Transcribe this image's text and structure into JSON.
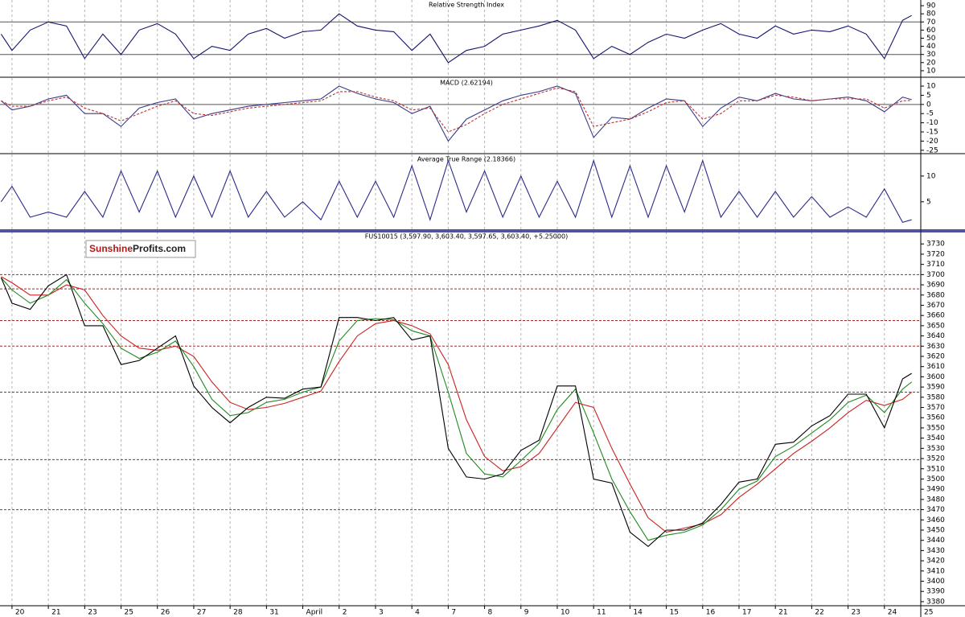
{
  "chart_data": [
    {
      "type": "line",
      "title": "Relative Strength Index",
      "ylim": [
        3,
        97
      ],
      "yticks": [
        90,
        80,
        70,
        60,
        50,
        40,
        30,
        20,
        10
      ],
      "hlines": [
        70,
        30
      ],
      "hline_color": "#555555",
      "series": [
        {
          "color": "#14146e",
          "values": [
            55,
            35,
            60,
            70,
            65,
            25,
            55,
            30,
            60,
            68,
            55,
            25,
            40,
            35,
            55,
            62,
            50,
            58,
            60,
            80,
            65,
            60,
            58,
            35,
            55,
            20,
            35,
            40,
            55,
            60,
            65,
            72,
            60,
            25,
            40,
            30,
            45,
            55,
            50,
            60,
            68,
            55,
            50,
            65,
            55,
            60,
            58,
            65,
            55,
            25,
            72,
            78
          ]
        }
      ]
    },
    {
      "type": "line",
      "title": "MACD (2.62194)",
      "ylim": [
        -26.4,
        14.4
      ],
      "yticks": [
        10,
        5,
        0,
        -5,
        -10,
        -15,
        -20,
        -25
      ],
      "hlines": [
        0
      ],
      "hline_color": "#555555",
      "series": [
        {
          "color": "#3a3a8a",
          "values": [
            2,
            -3,
            -1,
            3,
            5,
            -5,
            -5,
            -12,
            -2,
            1,
            3,
            -8,
            -5,
            -3,
            -1,
            0,
            1,
            2,
            3,
            10,
            6,
            3,
            1,
            -5,
            -1,
            -20,
            -8,
            -3,
            2,
            5,
            7,
            10,
            6,
            -18,
            -7,
            -8,
            -2,
            3,
            2,
            -12,
            -2,
            4,
            2,
            6,
            3,
            2,
            3,
            4,
            2,
            -4,
            4,
            2.6
          ]
        },
        {
          "color": "#c03030",
          "dashed": true,
          "values": [
            2,
            -1,
            -1,
            2,
            4,
            -2,
            -5,
            -9,
            -5,
            -1,
            2,
            -5,
            -6,
            -4,
            -2,
            -1,
            0,
            1,
            2,
            7,
            7,
            4,
            2,
            -3,
            -2,
            -15,
            -11,
            -5,
            0,
            3,
            6,
            9,
            7,
            -12,
            -10,
            -8,
            -4,
            1,
            2,
            -8,
            -5,
            2,
            2,
            5,
            4,
            2,
            3,
            3,
            3,
            -2,
            2,
            2.2
          ]
        }
      ]
    },
    {
      "type": "line",
      "title": "Average True Range (2.18366)",
      "ylim": [
        -0.5,
        14.2
      ],
      "yticks": [
        10,
        5
      ],
      "series": [
        {
          "color": "#2a2a8a",
          "values": [
            5,
            8,
            2,
            3,
            2,
            7,
            2,
            11,
            3,
            11,
            2,
            10,
            2,
            11,
            2,
            7,
            2,
            5,
            1.5,
            9,
            2,
            9,
            2,
            12,
            1.5,
            13,
            3,
            11,
            2,
            10,
            2,
            9,
            2,
            13,
            2,
            12,
            2,
            12,
            3,
            13,
            2,
            7,
            2,
            7,
            2,
            6,
            2,
            4,
            2,
            7.5,
            1,
            1.5
          ]
        }
      ]
    },
    {
      "type": "line",
      "title": "FUS10015 (3,597.90, 3,603.40, 3,597.65, 3,603.40, +5.25000)",
      "x": [
        -0.3,
        0,
        0.5,
        1,
        1.5,
        2,
        2.5,
        3,
        3.5,
        4,
        4.5,
        5,
        5.5,
        6,
        6.5,
        7,
        7.5,
        8,
        8.5,
        9,
        9.5,
        10,
        10.5,
        11,
        11.5,
        12,
        12.5,
        13,
        13.5,
        14,
        14.5,
        15,
        15.5,
        16,
        16.5,
        17,
        17.5,
        18,
        18.5,
        19,
        19.5,
        20,
        20.5,
        21,
        21.5,
        22,
        22.5,
        23,
        23.5,
        24,
        24.5,
        24.75
      ],
      "xlim": [
        -0.33,
        25
      ],
      "xticks": [
        {
          "value": 0,
          "label": "20"
        },
        {
          "value": 1,
          "label": "21"
        },
        {
          "value": 2,
          "label": "23"
        },
        {
          "value": 3,
          "label": "25"
        },
        {
          "value": 4,
          "label": "26"
        },
        {
          "value": 5,
          "label": "27"
        },
        {
          "value": 6,
          "label": "28"
        },
        {
          "value": 7,
          "label": "31"
        },
        {
          "value": 8,
          "label": "April"
        },
        {
          "value": 9,
          "label": "2"
        },
        {
          "value": 10,
          "label": "3"
        },
        {
          "value": 11,
          "label": "4"
        },
        {
          "value": 12,
          "label": "7"
        },
        {
          "value": 13,
          "label": "8"
        },
        {
          "value": 14,
          "label": "9"
        },
        {
          "value": 15,
          "label": "10"
        },
        {
          "value": 16,
          "label": "11"
        },
        {
          "value": 17,
          "label": "14"
        },
        {
          "value": 18,
          "label": "15"
        },
        {
          "value": 19,
          "label": "16"
        },
        {
          "value": 20,
          "label": "17"
        },
        {
          "value": 21,
          "label": "21"
        },
        {
          "value": 22,
          "label": "22"
        },
        {
          "value": 23,
          "label": "23"
        },
        {
          "value": 24,
          "label": "24"
        },
        {
          "value": 25,
          "label": "25"
        }
      ],
      "ylim": [
        3376,
        3742
      ],
      "yticks": [
        3730,
        3720,
        3710,
        3700,
        3690,
        3680,
        3670,
        3660,
        3650,
        3640,
        3630,
        3620,
        3610,
        3600,
        3590,
        3580,
        3570,
        3560,
        3550,
        3540,
        3530,
        3520,
        3510,
        3500,
        3490,
        3480,
        3470,
        3460,
        3450,
        3440,
        3430,
        3420,
        3410,
        3400,
        3390,
        3380
      ],
      "hlines": [
        3700,
        3686,
        3655,
        3630,
        3585,
        3519,
        3470
      ],
      "hline_color": "#a02828",
      "hline_dashed": true,
      "series": [
        {
          "color": "#cc2020",
          "values": [
            3698,
            3692,
            3680,
            3680,
            3690,
            3685,
            3660,
            3640,
            3628,
            3626,
            3630,
            3620,
            3595,
            3575,
            3568,
            3570,
            3574,
            3580,
            3586,
            3615,
            3640,
            3652,
            3655,
            3650,
            3642,
            3612,
            3558,
            3522,
            3508,
            3512,
            3525,
            3550,
            3575,
            3570,
            3530,
            3495,
            3462,
            3448,
            3452,
            3456,
            3465,
            3482,
            3495,
            3510,
            3525,
            3537,
            3550,
            3565,
            3577,
            3572,
            3578,
            3585
          ]
        },
        {
          "color": "#1f8a1f",
          "values": [
            3697,
            3685,
            3672,
            3680,
            3695,
            3672,
            3652,
            3628,
            3618,
            3624,
            3635,
            3610,
            3578,
            3562,
            3565,
            3575,
            3578,
            3585,
            3590,
            3635,
            3655,
            3657,
            3656,
            3645,
            3640,
            3585,
            3525,
            3505,
            3502,
            3518,
            3535,
            3568,
            3588,
            3545,
            3500,
            3468,
            3440,
            3445,
            3448,
            3455,
            3470,
            3490,
            3498,
            3522,
            3532,
            3545,
            3558,
            3575,
            3582,
            3565,
            3588,
            3595
          ]
        },
        {
          "color": "#000000",
          "values": [
            3697,
            3672,
            3666,
            3689,
            3700,
            3650,
            3650,
            3612,
            3616,
            3628,
            3640,
            3591,
            3570,
            3555,
            3570,
            3580,
            3579,
            3588,
            3590,
            3658,
            3658,
            3655,
            3658,
            3636,
            3640,
            3530,
            3502,
            3500,
            3505,
            3528,
            3538,
            3591,
            3591,
            3500,
            3496,
            3448,
            3434,
            3450,
            3450,
            3457,
            3475,
            3497,
            3500,
            3534,
            3536,
            3552,
            3562,
            3583,
            3583,
            3550,
            3598,
            3603.4
          ]
        }
      ]
    }
  ],
  "watermark": {
    "brand": "Sunshine",
    "suffix": "Profits.com"
  }
}
